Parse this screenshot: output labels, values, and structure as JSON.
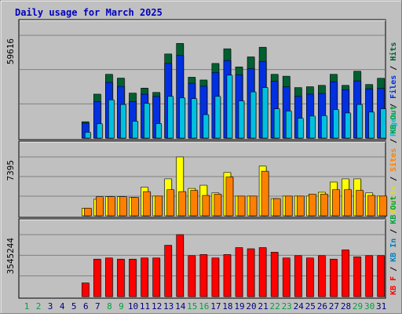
{
  "title": "Daily usage for March 2025",
  "colors": {
    "bg": "#c0c0c0",
    "title": "#0000c0",
    "hits": "#006030",
    "files": "#0030e0",
    "pages": "#00c0e0",
    "visits": "#ffff00",
    "sites": "#ff8000",
    "kbf": "#ff0000",
    "day_weekend": "#00a040",
    "day_weekday": "#000080"
  },
  "legend": {
    "top": [
      {
        "text": "Pages",
        "color": "#00c0e0"
      },
      {
        "text": " / ",
        "color": "#000000"
      },
      {
        "text": "Files",
        "color": "#0030e0"
      },
      {
        "text": " / ",
        "color": "#000000"
      },
      {
        "text": "Hits",
        "color": "#006030"
      }
    ],
    "middle": [
      {
        "text": "Visits",
        "color": "#e0e000"
      },
      {
        "text": " / ",
        "color": "#000000"
      },
      {
        "text": "Sites",
        "color": "#ff8000"
      },
      {
        "text": " / ",
        "color": "#000000"
      },
      {
        "text": "KB Out",
        "color": "#00a040"
      }
    ],
    "bottom": [
      {
        "text": "KB F",
        "color": "#ff0000"
      },
      {
        "text": " / ",
        "color": "#000000"
      },
      {
        "text": "KB In",
        "color": "#0080c0"
      },
      {
        "text": " / ",
        "color": "#000000"
      },
      {
        "text": "KB Out",
        "color": "#00a040"
      }
    ]
  },
  "chart_data": {
    "type": "bar",
    "title": "Daily usage for March 2025",
    "days": [
      "1",
      "2",
      "3",
      "4",
      "5",
      "6",
      "7",
      "8",
      "9",
      "10",
      "11",
      "12",
      "13",
      "14",
      "15",
      "16",
      "17",
      "18",
      "19",
      "20",
      "21",
      "22",
      "23",
      "24",
      "25",
      "26",
      "27",
      "28",
      "29",
      "30",
      "31"
    ],
    "weekend_days": [
      1,
      2,
      8,
      9,
      15,
      16,
      22,
      23,
      29,
      30
    ],
    "panels": [
      {
        "ymax_label": "59616",
        "ymax": 59616,
        "series": [
          {
            "name": "Hits",
            "values": [
              0,
              0,
              0,
              0,
              0,
              9500,
              25500,
              37000,
              34800,
              26100,
              29000,
              26500,
              48800,
              54900,
              35300,
              33700,
              43300,
              51800,
              41300,
              47100,
              52700,
              37000,
              35900,
              29300,
              29800,
              30600,
              37000,
              30600,
              38800,
              31100,
              34700
            ]
          },
          {
            "name": "Files",
            "values": [
              0,
              0,
              0,
              0,
              0,
              8700,
              21200,
              32300,
              30000,
              21200,
              25500,
              24200,
              43300,
              47900,
              31800,
              30100,
              38100,
              45000,
              36800,
              40300,
              44500,
              32900,
              29800,
              24200,
              25500,
              25900,
              32700,
              28100,
              33200,
              28600,
              28800
            ]
          },
          {
            "name": "Pages",
            "values": [
              0,
              0,
              0,
              0,
              0,
              3400,
              8300,
              22200,
              19500,
              9800,
              20100,
              8400,
              24200,
              23300,
              22900,
              13600,
              24200,
              36500,
              21600,
              26800,
              29300,
              17000,
              15700,
              11500,
              12800,
              13000,
              16500,
              14600,
              19500,
              15100,
              17000
            ]
          }
        ]
      },
      {
        "ymax_label": "7395",
        "ymax": 7395,
        "series": [
          {
            "name": "Visits",
            "values": [
              0,
              0,
              0,
              0,
              0,
              960,
              2080,
              2400,
              2400,
              2320,
              3600,
              2480,
              4640,
              7395,
              3440,
              3840,
              2880,
              5440,
              2480,
              2480,
              6240,
              2160,
              2480,
              2480,
              2480,
              2960,
              4240,
              4640,
              4640,
              2880,
              2480
            ]
          },
          {
            "name": "Sites",
            "values": [
              0,
              0,
              0,
              0,
              0,
              960,
              2400,
              2400,
              2400,
              2320,
              3040,
              2480,
              3280,
              3040,
              3200,
              2560,
              2720,
              4880,
              2480,
              2480,
              5600,
              2160,
              2480,
              2480,
              2720,
              2720,
              3280,
              3280,
              3200,
              2560,
              2480
            ]
          }
        ]
      },
      {
        "ymax_label": "3545244",
        "ymax": 3545244,
        "series": [
          {
            "name": "KB F",
            "values": [
              0,
              0,
              0,
              0,
              0,
              783000,
              2144000,
              2210000,
              2144000,
              2144000,
              2210000,
              2210000,
              2937000,
              3545244,
              2342000,
              2408000,
              2210000,
              2408000,
              2804000,
              2738000,
              2804000,
              2540000,
              2210000,
              2342000,
              2210000,
              2342000,
              2144000,
              2672000,
              2276000,
              2342000,
              2342000
            ]
          }
        ]
      }
    ]
  }
}
